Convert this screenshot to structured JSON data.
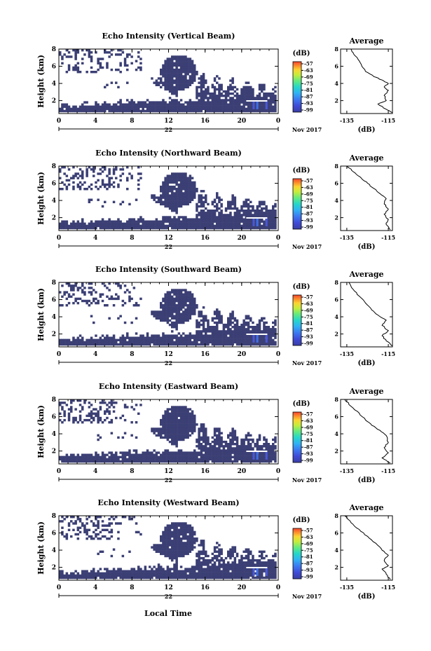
{
  "figure": {
    "xlabel": "Local Time",
    "date_label": "Nov 2017",
    "day_label": "22",
    "colorbar_unit": "(dB)",
    "colorbar_ticks": [
      "-57",
      "-63",
      "-69",
      "-75",
      "-81",
      "-87",
      "-93",
      "-99"
    ],
    "colorbar_colors": [
      "#3a3fa4",
      "#3f4ad4",
      "#3c78f0",
      "#2fb3f3",
      "#25d7c8",
      "#63ea7e",
      "#c6ed3b",
      "#fbd432",
      "#fc8e2b",
      "#f4442c"
    ],
    "profile_title": "Average",
    "profile_xlabel": "(dB)",
    "colors": {
      "echo_fill": "#3b3f74",
      "profile_line": "#000000"
    }
  },
  "chart_data": [
    {
      "type": "heatmap",
      "title": "Echo Intensity (Vertical Beam)",
      "ylabel": "Height (km)",
      "x_ticks": [
        "0",
        "4",
        "8",
        "12",
        "16",
        "20",
        "0"
      ],
      "y_ticks": [
        "2",
        "4",
        "6",
        "8"
      ],
      "xlim": [
        0,
        24
      ],
      "ylim": [
        0.5,
        8
      ],
      "profile": {
        "x_ticks": [
          "-135",
          "-115"
        ],
        "y_ticks": [
          "2",
          "4",
          "6",
          "8"
        ],
        "xlim": [
          -138,
          -113
        ],
        "points": [
          [
            -113,
            0.6
          ],
          [
            -116,
            1.0
          ],
          [
            -120,
            1.6
          ],
          [
            -116,
            2.0
          ],
          [
            -117,
            2.6
          ],
          [
            -115,
            3.2
          ],
          [
            -117,
            3.6
          ],
          [
            -115,
            4.0
          ],
          [
            -118,
            4.4
          ],
          [
            -122,
            4.8
          ],
          [
            -126,
            5.4
          ],
          [
            -128,
            6.2
          ],
          [
            -130,
            7.0
          ],
          [
            -132,
            7.6
          ],
          [
            -133,
            8.0
          ]
        ]
      }
    },
    {
      "type": "heatmap",
      "title": "Echo Intensity (Northward Beam)",
      "ylabel": "Height (km)",
      "x_ticks": [
        "0",
        "4",
        "8",
        "12",
        "16",
        "20",
        "0"
      ],
      "y_ticks": [
        "2",
        "4",
        "6",
        "8"
      ],
      "xlim": [
        0,
        24
      ],
      "ylim": [
        0.5,
        8
      ],
      "profile": {
        "x_ticks": [
          "-135",
          "-115"
        ],
        "y_ticks": [
          "2",
          "4",
          "6",
          "8"
        ],
        "xlim": [
          -138,
          -113
        ],
        "points": [
          [
            -114,
            0.6
          ],
          [
            -116,
            1.2
          ],
          [
            -115,
            1.8
          ],
          [
            -117,
            2.4
          ],
          [
            -115,
            3.0
          ],
          [
            -117,
            3.6
          ],
          [
            -116,
            4.2
          ],
          [
            -119,
            4.8
          ],
          [
            -122,
            5.4
          ],
          [
            -125,
            6.0
          ],
          [
            -128,
            6.6
          ],
          [
            -131,
            7.2
          ],
          [
            -134,
            7.8
          ],
          [
            -135,
            8.0
          ]
        ]
      }
    },
    {
      "type": "heatmap",
      "title": "Echo Intensity (Southward Beam)",
      "ylabel": "Height (km)",
      "x_ticks": [
        "0",
        "4",
        "8",
        "12",
        "16",
        "20",
        "0"
      ],
      "y_ticks": [
        "2",
        "4",
        "6",
        "8"
      ],
      "xlim": [
        0,
        24
      ],
      "ylim": [
        0.5,
        8
      ],
      "profile": {
        "x_ticks": [
          "-135",
          "-115"
        ],
        "y_ticks": [
          "2",
          "4",
          "6",
          "8"
        ],
        "xlim": [
          -138,
          -113
        ],
        "points": [
          [
            -113,
            0.6
          ],
          [
            -116,
            1.2
          ],
          [
            -118,
            1.8
          ],
          [
            -115,
            2.4
          ],
          [
            -118,
            3.0
          ],
          [
            -116,
            3.6
          ],
          [
            -120,
            4.2
          ],
          [
            -123,
            4.8
          ],
          [
            -126,
            5.6
          ],
          [
            -129,
            6.4
          ],
          [
            -132,
            7.2
          ],
          [
            -134,
            8.0
          ]
        ]
      }
    },
    {
      "type": "heatmap",
      "title": "Echo Intensity (Eastward Beam)",
      "ylabel": "Height (km)",
      "x_ticks": [
        "0",
        "4",
        "8",
        "12",
        "16",
        "20",
        "0"
      ],
      "y_ticks": [
        "2",
        "4",
        "6",
        "8"
      ],
      "xlim": [
        0,
        24
      ],
      "ylim": [
        0.5,
        8
      ],
      "profile": {
        "x_ticks": [
          "-135",
          "-115"
        ],
        "y_ticks": [
          "2",
          "4",
          "6",
          "8"
        ],
        "xlim": [
          -138,
          -113
        ],
        "points": [
          [
            -114,
            0.6
          ],
          [
            -118,
            1.2
          ],
          [
            -115,
            1.8
          ],
          [
            -117,
            2.4
          ],
          [
            -115,
            3.0
          ],
          [
            -116,
            3.8
          ],
          [
            -119,
            4.4
          ],
          [
            -123,
            5.0
          ],
          [
            -126,
            5.6
          ],
          [
            -129,
            6.4
          ],
          [
            -133,
            7.2
          ],
          [
            -136,
            8.0
          ]
        ]
      }
    },
    {
      "type": "heatmap",
      "title": "Echo Intensity (Westward Beam)",
      "ylabel": "Height (km)",
      "x_ticks": [
        "0",
        "4",
        "8",
        "12",
        "16",
        "20",
        "0"
      ],
      "y_ticks": [
        "2",
        "4",
        "6",
        "8"
      ],
      "xlim": [
        0,
        24
      ],
      "ylim": [
        0.5,
        8
      ],
      "profile": {
        "x_ticks": [
          "-135",
          "-115"
        ],
        "y_ticks": [
          "2",
          "4",
          "6",
          "8"
        ],
        "xlim": [
          -138,
          -113
        ],
        "points": [
          [
            -114,
            0.6
          ],
          [
            -116,
            1.2
          ],
          [
            -118,
            1.8
          ],
          [
            -115,
            2.2
          ],
          [
            -117,
            2.8
          ],
          [
            -115,
            3.4
          ],
          [
            -118,
            4.0
          ],
          [
            -121,
            4.8
          ],
          [
            -125,
            5.6
          ],
          [
            -129,
            6.4
          ],
          [
            -133,
            7.2
          ],
          [
            -136,
            8.0
          ]
        ]
      }
    }
  ]
}
